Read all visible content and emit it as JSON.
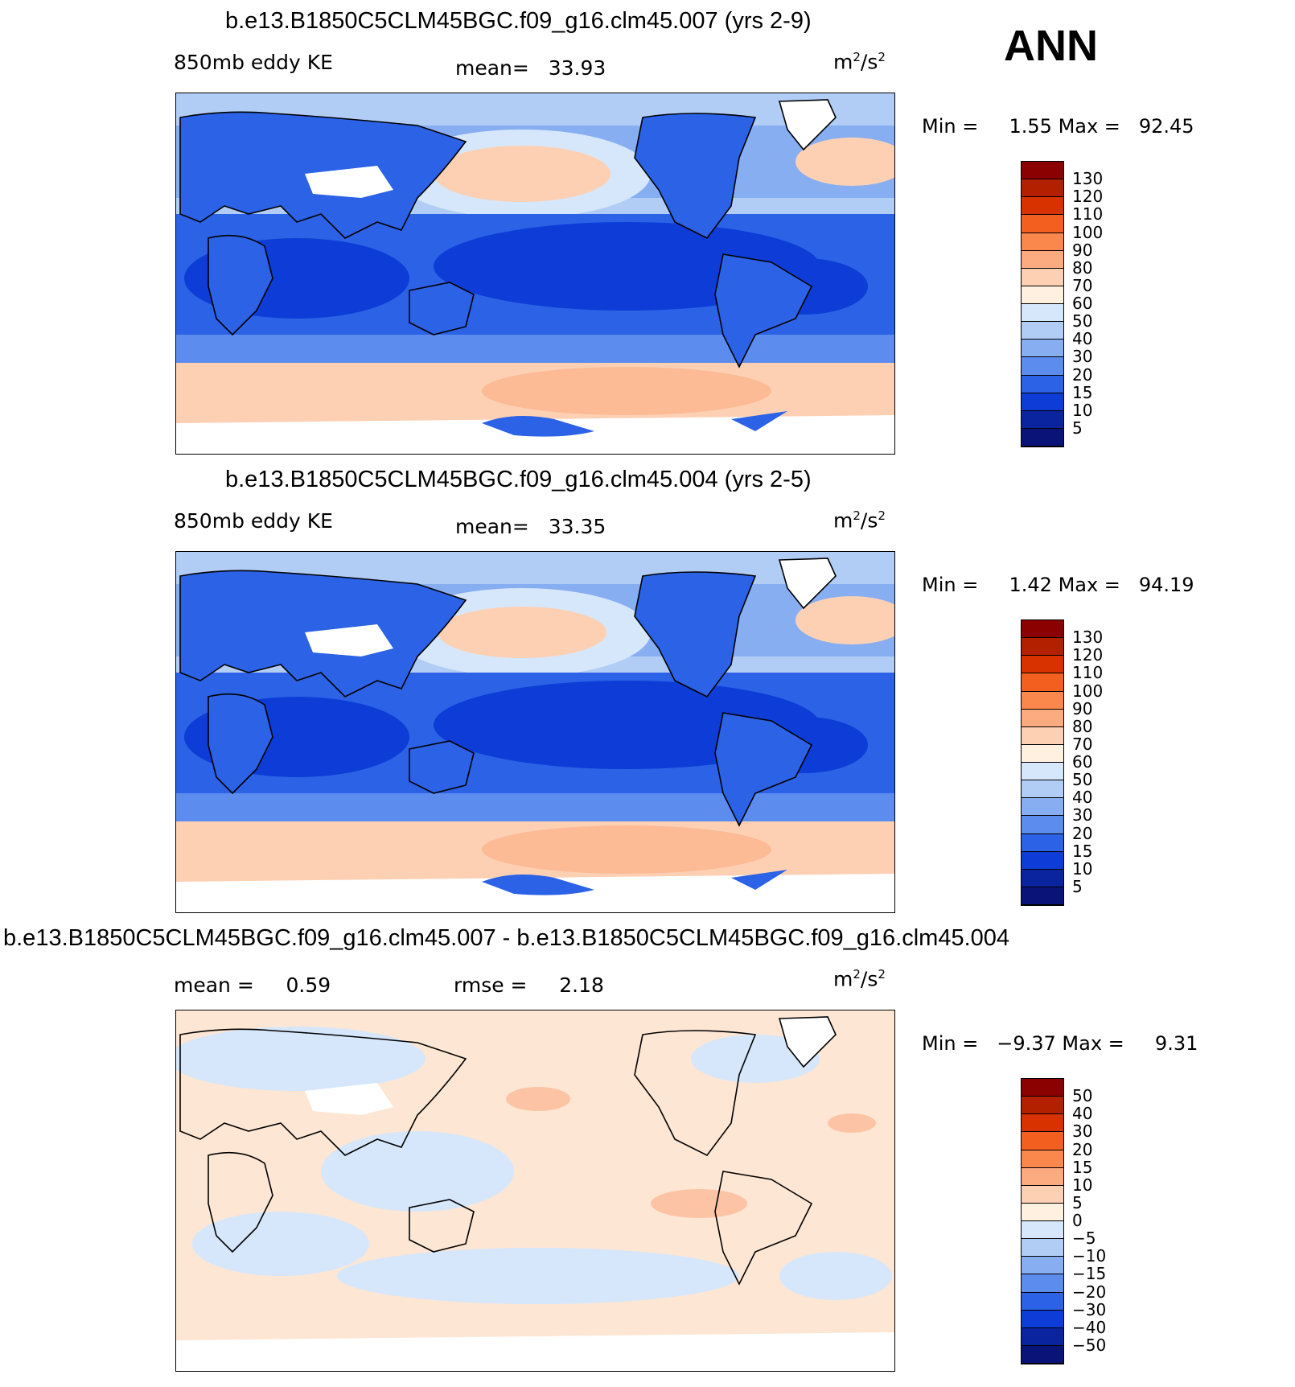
{
  "season": "ANN",
  "panels": [
    {
      "id": "case1",
      "title": "b.e13.B1850C5CLM45BGC.f09_g16.clm45.007 (yrs 2-9)",
      "field": "850mb eddy KE",
      "stat1_label": "mean=",
      "stat1_value": "33.93",
      "units_base": "m",
      "units_exp1": "2",
      "units_mid": "/s",
      "units_exp2": "2",
      "min_label": "Min =",
      "min_value": "1.55",
      "max_label": "Max =",
      "max_value": "92.45",
      "levels": [
        "130",
        "120",
        "110",
        "100",
        "90",
        "80",
        "70",
        "60",
        "50",
        "40",
        "30",
        "20",
        "15",
        "10",
        "5"
      ]
    },
    {
      "id": "case2",
      "title": "b.e13.B1850C5CLM45BGC.f09_g16.clm45.004 (yrs 2-5)",
      "field": "850mb eddy KE",
      "stat1_label": "mean=",
      "stat1_value": "33.35",
      "units_base": "m",
      "units_exp1": "2",
      "units_mid": "/s",
      "units_exp2": "2",
      "min_label": "Min =",
      "min_value": "1.42",
      "max_label": "Max =",
      "max_value": "94.19",
      "levels": [
        "130",
        "120",
        "110",
        "100",
        "90",
        "80",
        "70",
        "60",
        "50",
        "40",
        "30",
        "20",
        "15",
        "10",
        "5"
      ]
    },
    {
      "id": "diff",
      "title": "b.e13.B1850C5CLM45BGC.f09_g16.clm45.007 - b.e13.B1850C5CLM45BGC.f09_g16.clm45.004",
      "stat1_label": "mean =",
      "stat1_value": "0.59",
      "stat2_label": "rmse =",
      "stat2_value": "2.18",
      "units_base": "m",
      "units_exp1": "2",
      "units_mid": "/s",
      "units_exp2": "2",
      "min_label": "Min =",
      "min_value": "−9.37",
      "max_label": "Max =",
      "max_value": "9.31",
      "levels": [
        "50",
        "40",
        "30",
        "20",
        "15",
        "10",
        "5",
        "0",
        "−5",
        "−10",
        "−15",
        "−20",
        "−30",
        "−40",
        "−50"
      ]
    }
  ],
  "palette": [
    "#8b0000",
    "#b22000",
    "#d83200",
    "#f25f1e",
    "#fa874b",
    "#fcab80",
    "#fdd0b4",
    "#fff0e0",
    "#d6e7fb",
    "#b1cdf6",
    "#88aef2",
    "#5b8cee",
    "#2b62e6",
    "#0d3dd6",
    "#0a239e",
    "#0a1478"
  ],
  "colors": {
    "ocean_tropic": "#0d3dd6",
    "ocean_mid": "#2b62e6",
    "ocean_light": "#5b8cee",
    "storm_track": "#fdd0b4",
    "polar": "#b1cdf6",
    "land": "#2b62e6",
    "land_dark": "#0a239e",
    "diff_pos": "#fde6d4",
    "diff_neg": "#d6e7fb",
    "diff_pos_strong": "#fcc4a4",
    "diff_neg_strong": "#b1cdf6"
  }
}
